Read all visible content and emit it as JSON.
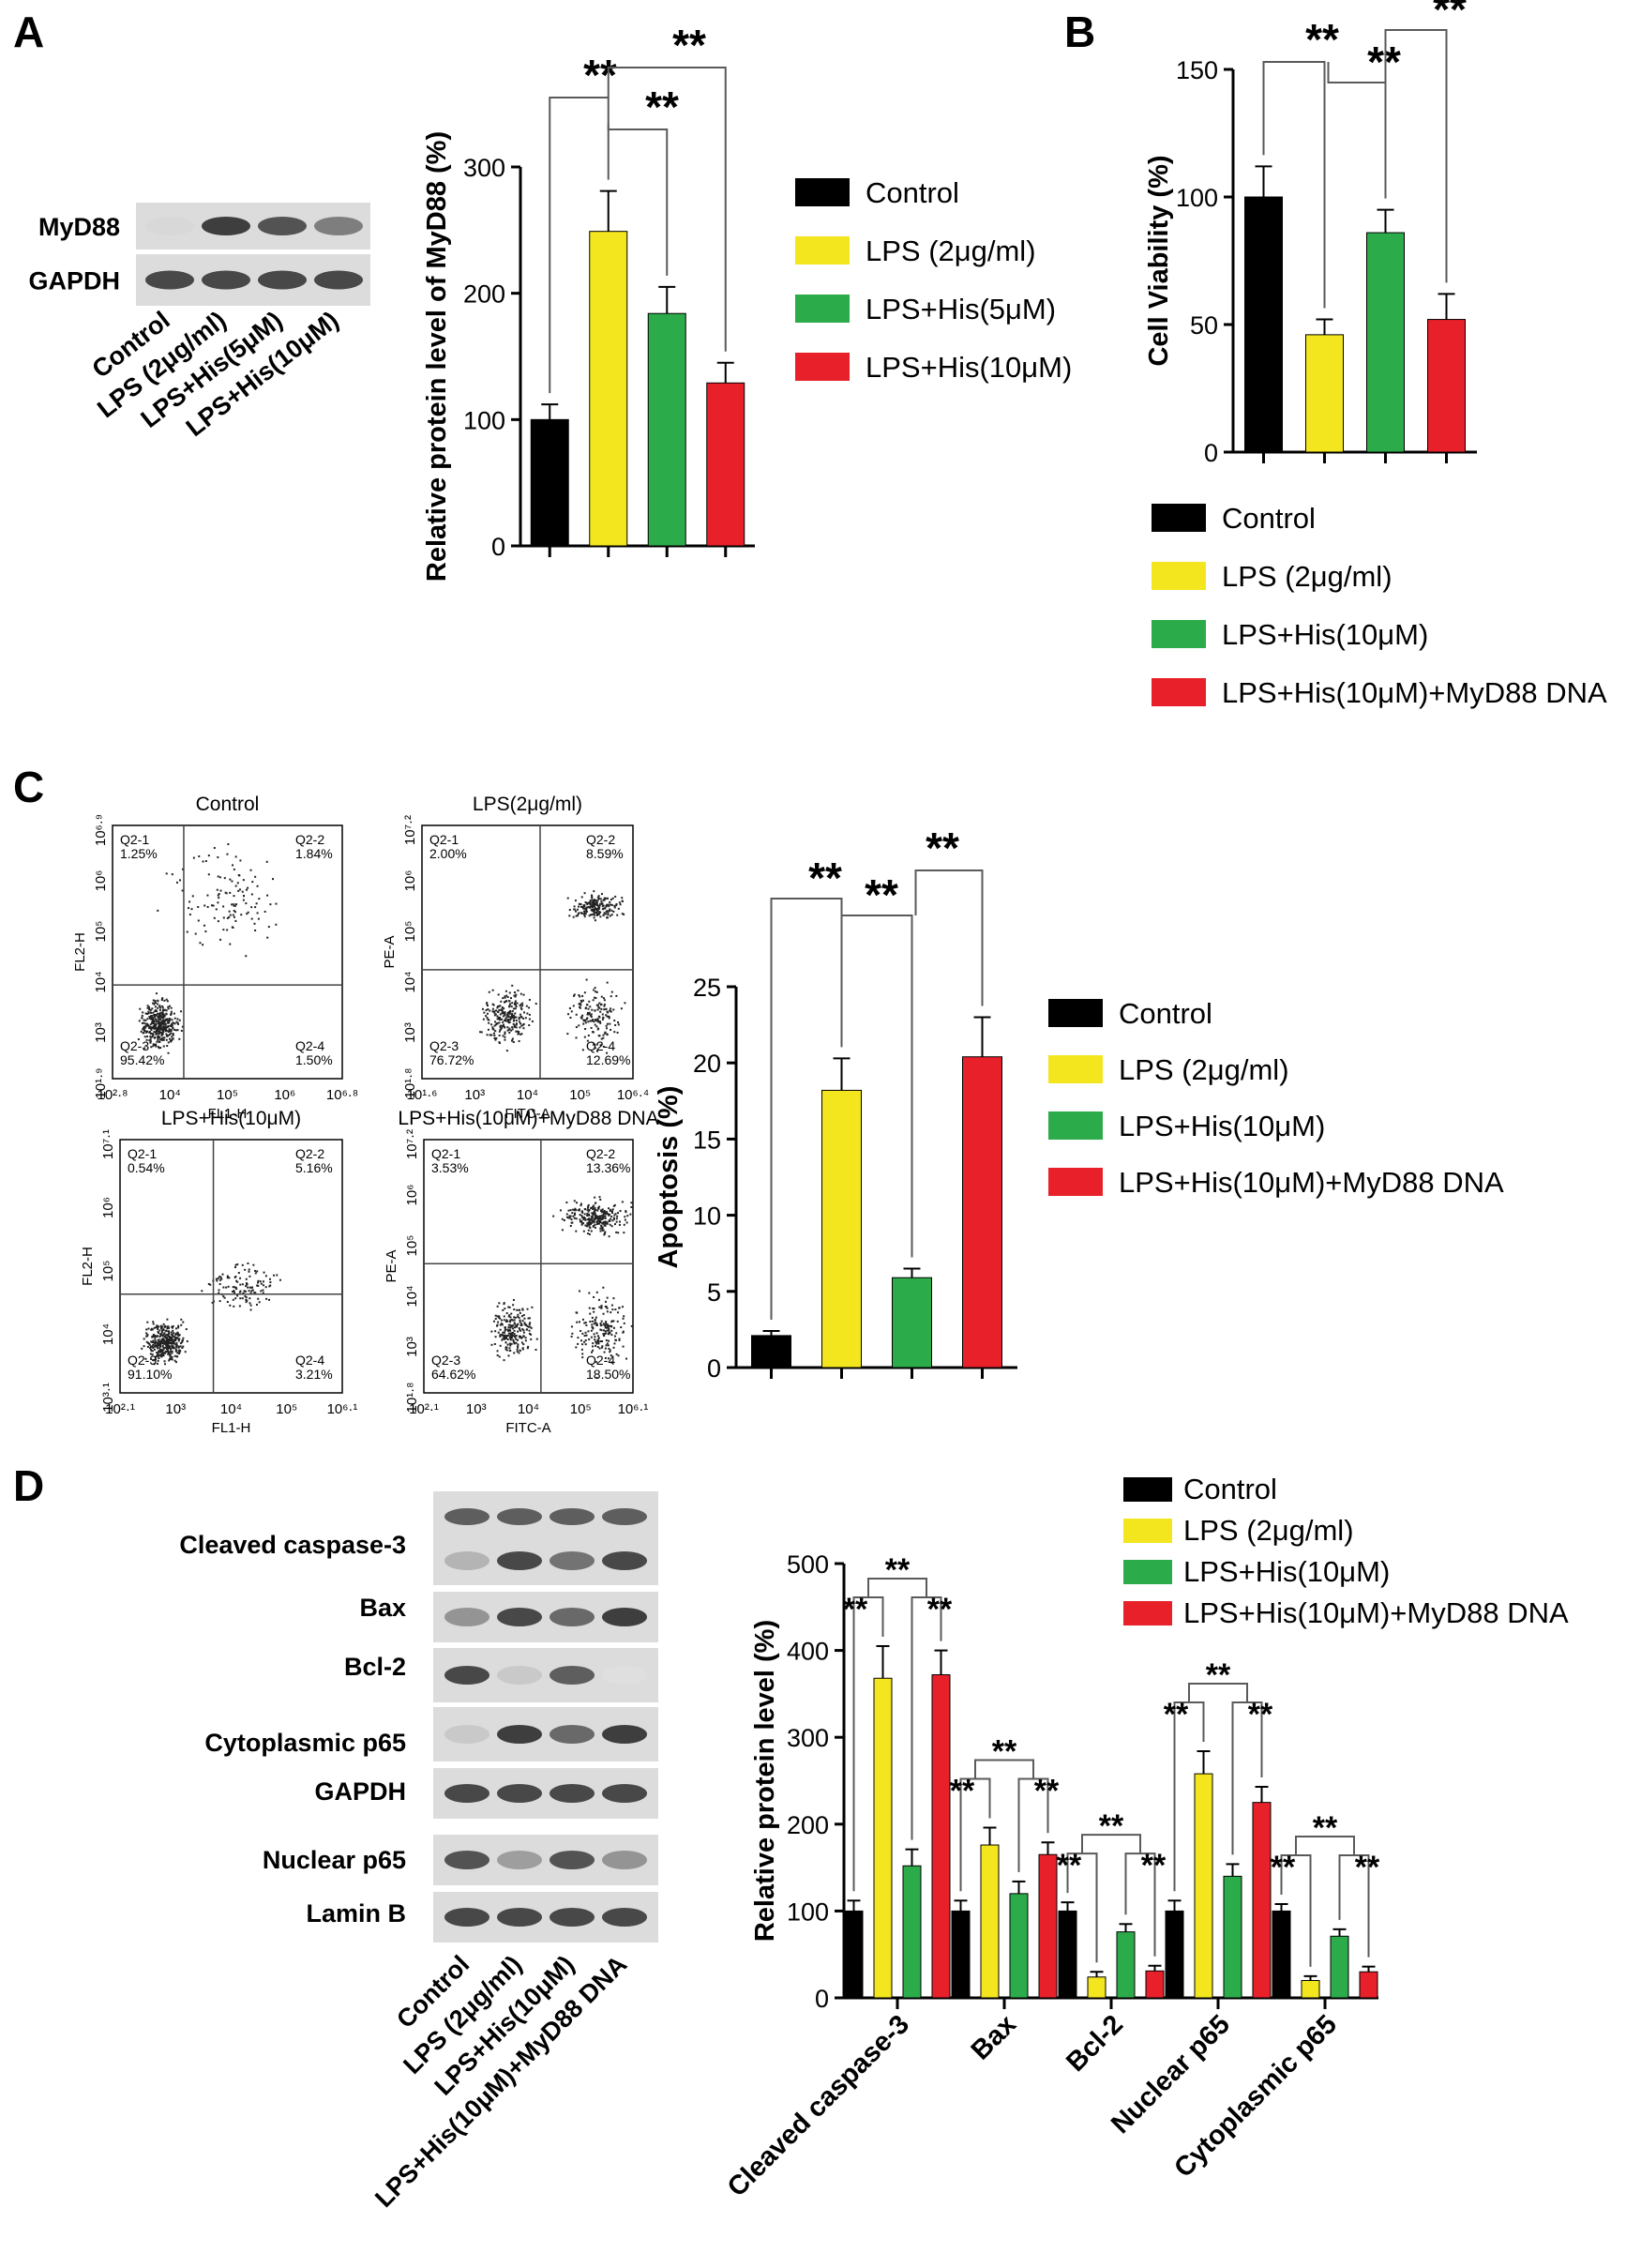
{
  "panels": {
    "a": "A",
    "b": "B",
    "c": "C",
    "d": "D"
  },
  "colors": {
    "control": "#000000",
    "lps": "#f4e61e",
    "his": "#2cab4a",
    "myd": "#e8202a"
  },
  "blot_a": {
    "bands": [
      "MyD88",
      "GAPDH"
    ],
    "lanes": [
      "Control",
      "LPS (2μg/ml)",
      "LPS+His(5μM)",
      "LPS+His(10μM)"
    ]
  },
  "blot_d": {
    "bands": [
      "Cleaved caspase-3",
      "Bax",
      "Bcl-2",
      "Cytoplasmic p65",
      "GAPDH",
      "Nuclear p65",
      "Lamin B"
    ],
    "lanes": [
      "Control",
      "LPS (2μg/ml)",
      "LPS+His(10μM)",
      "LPS+His(10μM)+MyD88 DNA"
    ]
  },
  "flow": {
    "plots": [
      {
        "title": "Control",
        "xlabel": "FL1-H",
        "ylabel": "FL2-H",
        "xticks": [
          "10²·⁸",
          "10⁴",
          "10⁵",
          "10⁶",
          "10⁶·⁸"
        ],
        "yticks": [
          "10⁶·⁹",
          "10⁶",
          "10⁵",
          "10⁴",
          "10³",
          "10¹·⁹"
        ],
        "quadrants": [
          {
            "name": "Q2-1",
            "value": "1.25%"
          },
          {
            "name": "Q2-2",
            "value": "1.84%"
          },
          {
            "name": "Q2-3",
            "value": "95.42%"
          },
          {
            "name": "Q2-4",
            "value": "1.50%"
          }
        ]
      },
      {
        "title": "LPS(2μg/ml)",
        "xlabel": "FITC-A",
        "ylabel": "PE-A",
        "xticks": [
          "10¹·⁶",
          "10³",
          "10⁴",
          "10⁵",
          "10⁶·⁴"
        ],
        "yticks": [
          "10⁷·²",
          "10⁶",
          "10⁵",
          "10⁴",
          "10³",
          "10¹·⁸"
        ],
        "quadrants": [
          {
            "name": "Q2-1",
            "value": "2.00%"
          },
          {
            "name": "Q2-2",
            "value": "8.59%"
          },
          {
            "name": "Q2-3",
            "value": "76.72%"
          },
          {
            "name": "Q2-4",
            "value": "12.69%"
          }
        ]
      },
      {
        "title": "LPS+His(10μM)",
        "xlabel": "FL1-H",
        "ylabel": "FL2-H",
        "xticks": [
          "10²·¹",
          "10³",
          "10⁴",
          "10⁵",
          "10⁶·¹"
        ],
        "yticks": [
          "10⁷·¹",
          "10⁶",
          "10⁵",
          "10⁴",
          "10³·¹"
        ],
        "quadrants": [
          {
            "name": "Q2-1",
            "value": "0.54%"
          },
          {
            "name": "Q2-2",
            "value": "5.16%"
          },
          {
            "name": "Q2-3",
            "value": "91.10%"
          },
          {
            "name": "Q2-4",
            "value": "3.21%"
          }
        ]
      },
      {
        "title": "LPS+His(10μM)+MyD88 DNA",
        "xlabel": "FITC-A",
        "ylabel": "PE-A",
        "xticks": [
          "10²·¹",
          "10³",
          "10⁴",
          "10⁵",
          "10⁶·¹"
        ],
        "yticks": [
          "10⁷·²",
          "10⁶",
          "10⁵",
          "10⁴",
          "10³",
          "10¹·⁸"
        ],
        "quadrants": [
          {
            "name": "Q2-1",
            "value": "3.53%"
          },
          {
            "name": "Q2-2",
            "value": "13.36%"
          },
          {
            "name": "Q2-3",
            "value": "64.62%"
          },
          {
            "name": "Q2-4",
            "value": "18.50%"
          }
        ]
      }
    ]
  },
  "chart_data": [
    {
      "id": "A-bar",
      "type": "bar",
      "ylabel": "Relative protein level of MyD88 (%)",
      "ylim": [
        0,
        300
      ],
      "yticks": [
        0,
        100,
        200,
        300
      ],
      "series": [
        {
          "name": "Control",
          "value": 100,
          "error": 12,
          "color": "#000000"
        },
        {
          "name": "LPS (2μg/ml)",
          "value": 249,
          "error": 32,
          "color": "#f4e61e"
        },
        {
          "name": "LPS+His(5μM)",
          "value": 184,
          "error": 21,
          "color": "#2cab4a"
        },
        {
          "name": "LPS+His(10μM)",
          "value": 129,
          "error": 16,
          "color": "#e8202a"
        }
      ],
      "significance": [
        "**",
        "**",
        "**"
      ],
      "legend_position": "right"
    },
    {
      "id": "B-bar",
      "type": "bar",
      "ylabel": "Cell Viability (%)",
      "ylim": [
        0,
        150
      ],
      "yticks": [
        0,
        50,
        100,
        150
      ],
      "series": [
        {
          "name": "Control",
          "value": 100,
          "error": 12,
          "color": "#000000"
        },
        {
          "name": "LPS (2μg/ml)",
          "value": 46,
          "error": 6,
          "color": "#f4e61e"
        },
        {
          "name": "LPS+His(10μM)",
          "value": 86,
          "error": 9,
          "color": "#2cab4a"
        },
        {
          "name": "LPS+His(10μM)+MyD88 DNA",
          "value": 52,
          "error": 10,
          "color": "#e8202a"
        }
      ],
      "significance": [
        "**",
        "**",
        "**"
      ],
      "legend_position": "bottom"
    },
    {
      "id": "C-bar",
      "type": "bar",
      "ylabel": "Apoptosis (%)",
      "ylim": [
        0,
        25
      ],
      "yticks": [
        0,
        5,
        10,
        15,
        20,
        25
      ],
      "series": [
        {
          "name": "Control",
          "value": 2.1,
          "error": 0.3,
          "color": "#000000"
        },
        {
          "name": "LPS (2μg/ml)",
          "value": 18.2,
          "error": 2.1,
          "color": "#f4e61e"
        },
        {
          "name": "LPS+His(10μM)",
          "value": 5.9,
          "error": 0.6,
          "color": "#2cab4a"
        },
        {
          "name": "LPS+His(10μM)+MyD88 DNA",
          "value": 20.4,
          "error": 2.6,
          "color": "#e8202a"
        }
      ],
      "significance": [
        "**",
        "**",
        "**"
      ],
      "legend_position": "right"
    },
    {
      "id": "D-bar",
      "type": "bar",
      "ylabel": "Relative protein level (%)",
      "ylim": [
        0,
        500
      ],
      "yticks": [
        0,
        100,
        200,
        300,
        400,
        500
      ],
      "categories": [
        "Cleaved caspase-3",
        "Bax",
        "Bcl-2",
        "Nuclear p65",
        "Cytoplasmic p65"
      ],
      "series": [
        {
          "name": "Control",
          "values": [
            100,
            100,
            100,
            100,
            100
          ],
          "errors": [
            12,
            12,
            10,
            12,
            8
          ],
          "color": "#000000"
        },
        {
          "name": "LPS (2μg/ml)",
          "values": [
            368,
            176,
            24,
            258,
            20
          ],
          "errors": [
            37,
            20,
            6,
            26,
            5
          ],
          "color": "#f4e61e"
        },
        {
          "name": "LPS+His(10μM)",
          "values": [
            152,
            120,
            76,
            140,
            71
          ],
          "errors": [
            19,
            14,
            9,
            14,
            8
          ],
          "color": "#2cab4a"
        },
        {
          "name": "LPS+His(10μM)+MyD88 DNA",
          "values": [
            372,
            165,
            31,
            225,
            30
          ],
          "errors": [
            28,
            14,
            6,
            18,
            6
          ],
          "color": "#e8202a"
        }
      ],
      "significance": [
        "**",
        "**",
        "**"
      ],
      "legend_position": "top-right"
    }
  ]
}
